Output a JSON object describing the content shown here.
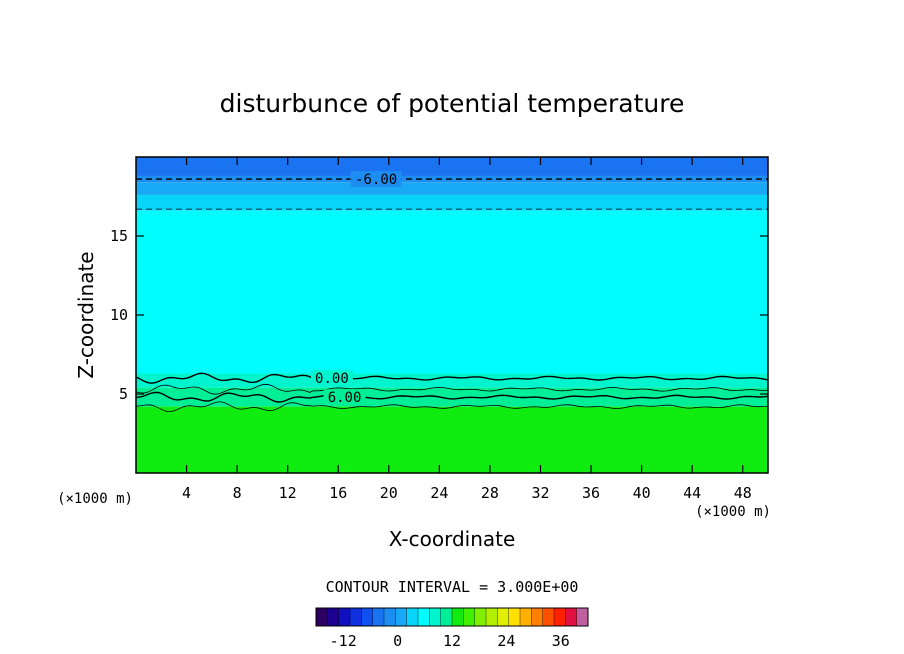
{
  "chart_data": {
    "type": "heatmap",
    "title": "disturbunce of potential temperature",
    "xlabel": "X-coordinate",
    "ylabel": "Z-coordinate",
    "x_unit_left": "(×1000 m)",
    "x_unit_right": "(×1000 m)",
    "xlim": [
      0,
      50
    ],
    "ylim": [
      0,
      20
    ],
    "xticks": [
      4,
      8,
      12,
      16,
      20,
      24,
      28,
      32,
      36,
      40,
      44,
      48
    ],
    "yticks": [
      5,
      10,
      15
    ],
    "grid": false,
    "fill_bands": [
      {
        "z_top": 20.0,
        "z_bottom": 18.8,
        "color": "#1a73f0"
      },
      {
        "z_top": 18.8,
        "z_bottom": 18.4,
        "color": "#1e8df2"
      },
      {
        "z_top": 18.4,
        "z_bottom": 17.6,
        "color": "#19a8f5"
      },
      {
        "z_top": 17.6,
        "z_bottom": 16.6,
        "color": "#07d4f8"
      },
      {
        "z_top": 16.6,
        "z_bottom": 6.3,
        "color": "#00fdfd"
      },
      {
        "z_top": 6.3,
        "z_bottom": 5.4,
        "color": "#00f5cf"
      },
      {
        "z_top": 5.4,
        "z_bottom": 4.2,
        "color": "#00ee95"
      },
      {
        "z_top": 4.2,
        "z_bottom": 0.0,
        "color": "#11ec10"
      }
    ],
    "contours": [
      {
        "level": -6.0,
        "label": "-6.00",
        "z": 18.6,
        "style": "dashed",
        "width": 1.4,
        "label_x": 19.0
      },
      {
        "level": -3.0,
        "z": 16.7,
        "style": "dashed",
        "width": 0.8
      },
      {
        "level": 0.0,
        "label": "0.00",
        "z": 6.0,
        "style": "solid",
        "width": 1.4,
        "label_x": 15.5
      },
      {
        "level": 3.0,
        "z": 5.3,
        "style": "solid",
        "width": 0.8
      },
      {
        "level": 6.0,
        "label": "6.00",
        "z": 4.8,
        "style": "solid",
        "width": 1.4,
        "label_x": 16.5
      },
      {
        "level": 9.0,
        "z": 4.2,
        "style": "solid",
        "width": 0.8
      }
    ],
    "contour_interval_text": "CONTOUR INTERVAL = 3.000E+00",
    "colorbar": {
      "range": [
        -18,
        42
      ],
      "ticks": [
        -12,
        0,
        12,
        24,
        36
      ],
      "tick_labels": [
        "-12",
        "0",
        "12",
        "24",
        "36"
      ],
      "colors": [
        "#2a0060",
        "#1c0090",
        "#1010c0",
        "#1030e0",
        "#1050f0",
        "#1a73f0",
        "#1e8df2",
        "#19a8f5",
        "#07d4f8",
        "#00fdfd",
        "#00f5cf",
        "#00ee95",
        "#11ec10",
        "#40f000",
        "#80f000",
        "#b0f000",
        "#e0f000",
        "#ffe000",
        "#ffb000",
        "#ff8000",
        "#ff5000",
        "#ff2000",
        "#e01040",
        "#c060a0"
      ]
    }
  }
}
